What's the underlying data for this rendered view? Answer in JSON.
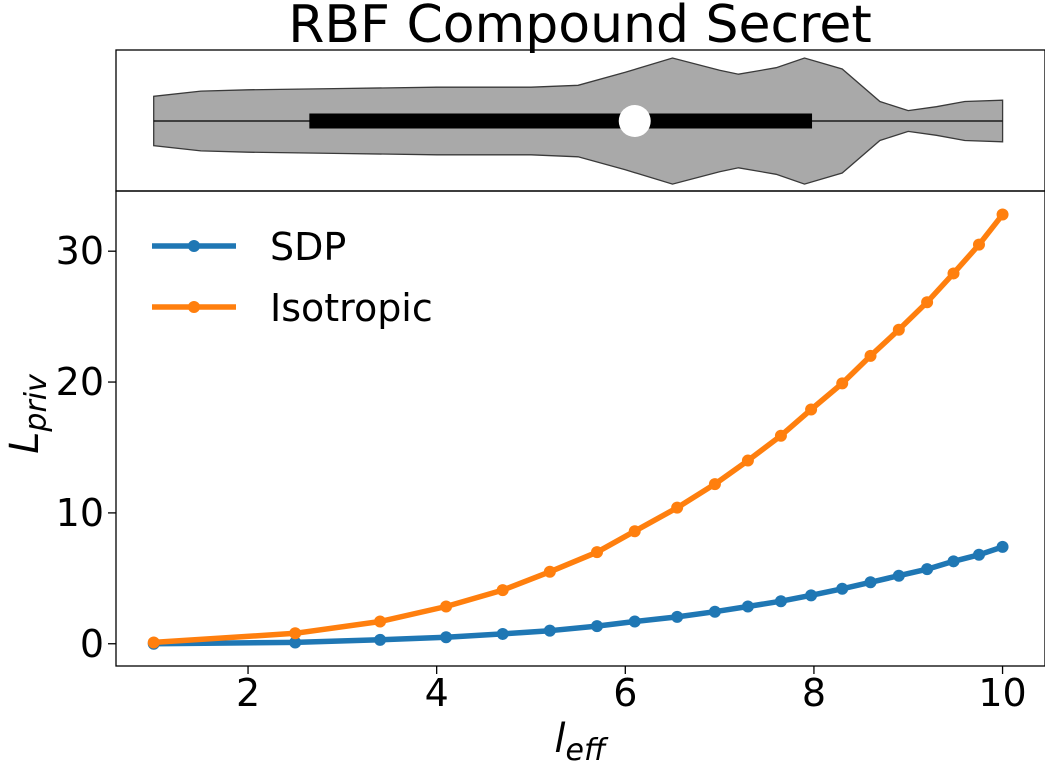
{
  "chart_data": [
    {
      "type": "violin",
      "title": "RBF Compound Secret",
      "orientation": "horizontal",
      "color": "#a9a9a9",
      "box": {
        "q1": 2.65,
        "q3": 7.98,
        "median": 6.1
      },
      "whiskers": [
        1.0,
        10.0
      ],
      "density_profile": [
        [
          1.0,
          0.38
        ],
        [
          1.5,
          0.46
        ],
        [
          2.0,
          0.48
        ],
        [
          3.0,
          0.5
        ],
        [
          4.0,
          0.52
        ],
        [
          5.0,
          0.52
        ],
        [
          5.5,
          0.55
        ],
        [
          6.0,
          0.75
        ],
        [
          6.5,
          0.97
        ],
        [
          7.0,
          0.78
        ],
        [
          7.2,
          0.72
        ],
        [
          7.6,
          0.82
        ],
        [
          7.9,
          0.97
        ],
        [
          8.3,
          0.8
        ],
        [
          8.7,
          0.3
        ],
        [
          9.0,
          0.16
        ],
        [
          9.3,
          0.22
        ],
        [
          9.6,
          0.3
        ],
        [
          10.0,
          0.32
        ]
      ]
    },
    {
      "type": "line",
      "xlabel": "l_eff",
      "ylabel": "L_priv",
      "xlim": [
        0.6,
        10.45
      ],
      "ylim": [
        -1.7,
        34.6
      ],
      "xticks": [
        2,
        4,
        6,
        8,
        10
      ],
      "yticks": [
        0,
        10,
        20,
        30
      ],
      "grid": false,
      "legend": "top-left",
      "series": [
        {
          "name": "SDP",
          "color": "#1f77b4",
          "x": [
            1.0,
            2.5,
            3.4,
            4.1,
            4.7,
            5.2,
            5.7,
            6.1,
            6.55,
            6.95,
            7.3,
            7.65,
            7.97,
            8.3,
            8.6,
            8.9,
            9.2,
            9.48,
            9.75,
            10.0
          ],
          "y": [
            0.0,
            0.1,
            0.3,
            0.5,
            0.75,
            1.0,
            1.35,
            1.7,
            2.05,
            2.45,
            2.85,
            3.25,
            3.7,
            4.2,
            4.7,
            5.2,
            5.7,
            6.3,
            6.8,
            7.4
          ]
        },
        {
          "name": "Isotropic",
          "color": "#ff7f0e",
          "x": [
            1.0,
            2.5,
            3.4,
            4.1,
            4.7,
            5.2,
            5.7,
            6.1,
            6.55,
            6.95,
            7.3,
            7.65,
            7.97,
            8.3,
            8.6,
            8.9,
            9.2,
            9.48,
            9.75,
            10.0
          ],
          "y": [
            0.1,
            0.8,
            1.7,
            2.85,
            4.1,
            5.5,
            7.0,
            8.6,
            10.4,
            12.2,
            14.0,
            15.9,
            17.9,
            19.9,
            22.0,
            24.0,
            26.1,
            28.3,
            30.5,
            32.8
          ]
        }
      ]
    }
  ]
}
